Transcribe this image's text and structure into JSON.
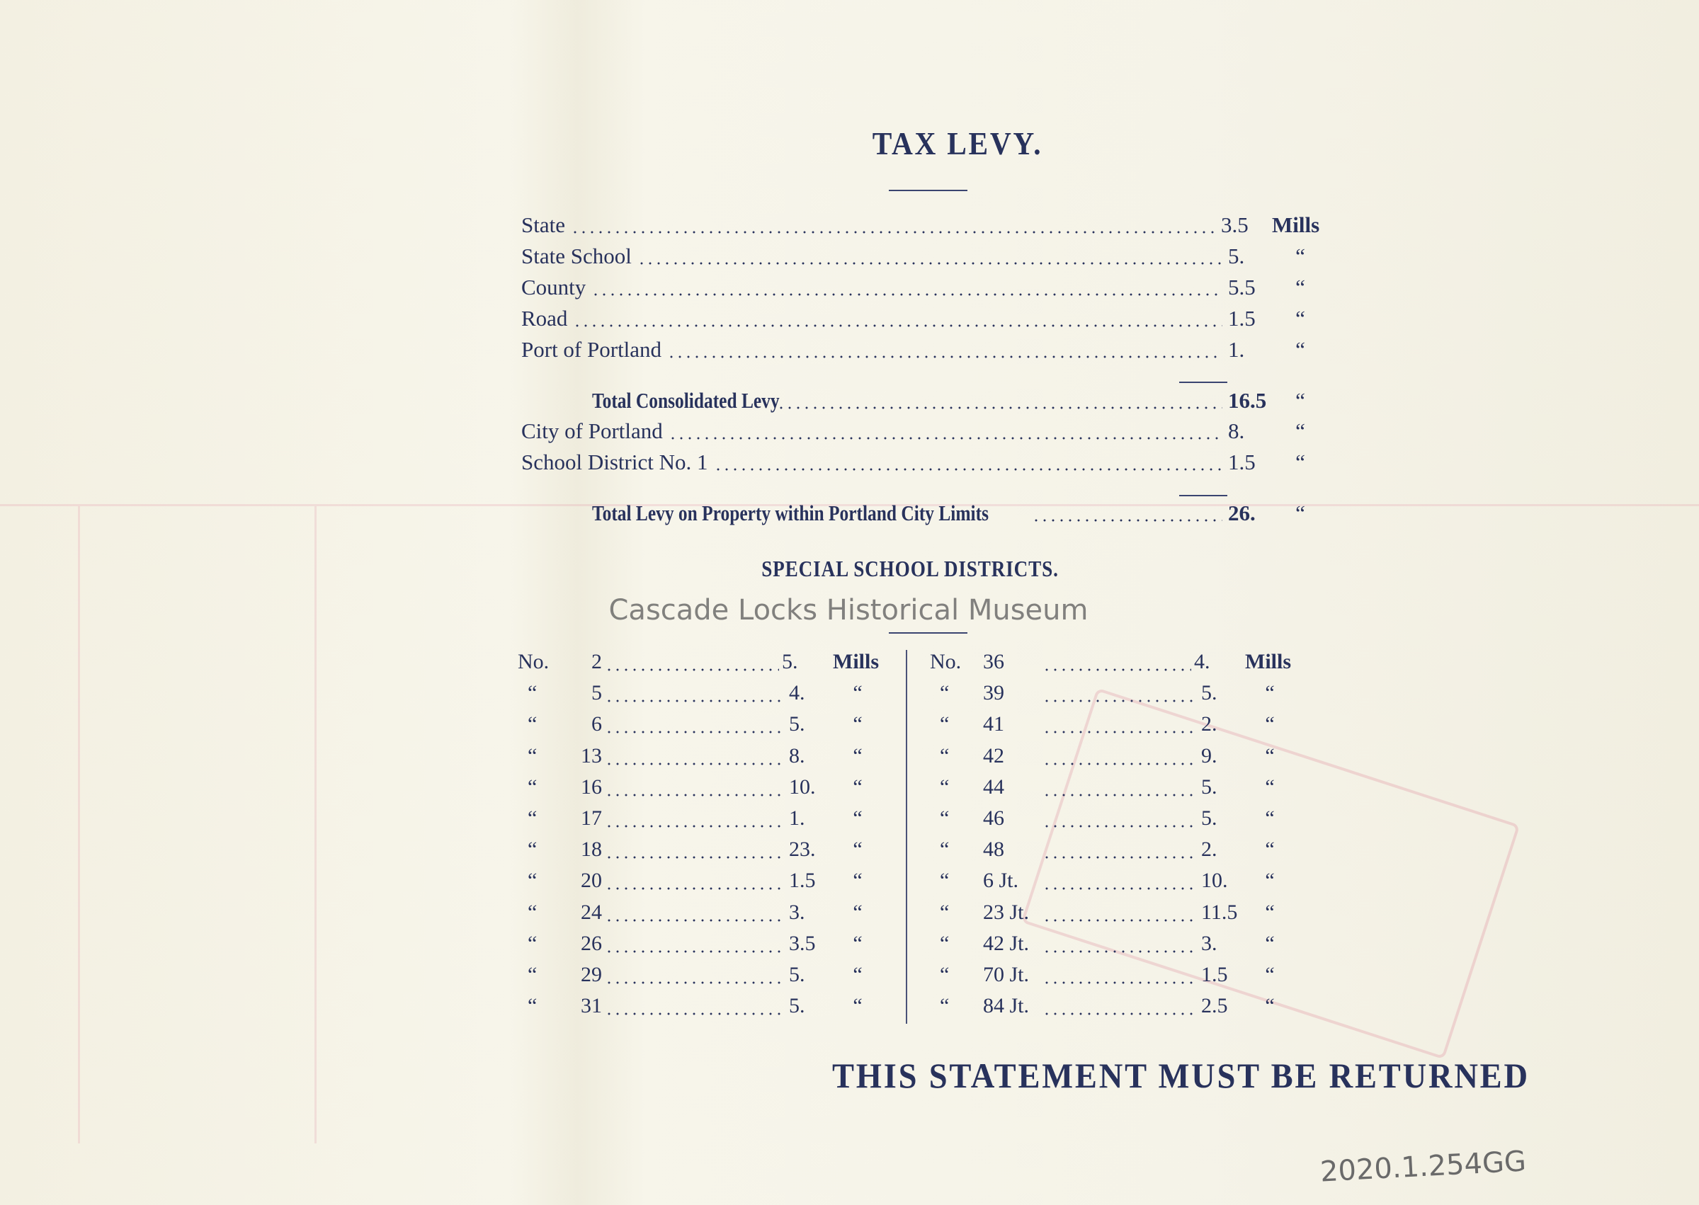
{
  "title": "TAX LEVY.",
  "levy": {
    "unit_first": "Mills",
    "ditto": "“",
    "rows": [
      {
        "label": "State",
        "value": "3.5",
        "unit": "Mills"
      },
      {
        "label": "State School",
        "value": "5.",
        "unit": "“"
      },
      {
        "label": "County",
        "value": "5.5",
        "unit": "“"
      },
      {
        "label": "Road",
        "value": "1.5",
        "unit": "“"
      },
      {
        "label": "Port of Portland",
        "value": "1.",
        "unit": "“"
      },
      {
        "label": "Total Consolidated Levy",
        "value": "16.5",
        "unit": "“"
      },
      {
        "label": "City of Portland",
        "value": "8.",
        "unit": "“"
      },
      {
        "label": "School District No. 1",
        "value": "1.5",
        "unit": "“"
      },
      {
        "label": "Total Levy on Property within Portland City Limits",
        "value": "26.",
        "unit": "“"
      }
    ]
  },
  "special": {
    "heading": "SPECIAL SCHOOL DISTRICTS.",
    "left": [
      {
        "prefix": "No.",
        "district": "2",
        "value": "5.",
        "unit": "Mills"
      },
      {
        "prefix": "“",
        "district": "5",
        "value": "4.",
        "unit": "“"
      },
      {
        "prefix": "“",
        "district": "6",
        "value": "5.",
        "unit": "“"
      },
      {
        "prefix": "“",
        "district": "13",
        "value": "8.",
        "unit": "“"
      },
      {
        "prefix": "“",
        "district": "16",
        "value": "10.",
        "unit": "“"
      },
      {
        "prefix": "“",
        "district": "17",
        "value": "1.",
        "unit": "“"
      },
      {
        "prefix": "“",
        "district": "18",
        "value": "23.",
        "unit": "“"
      },
      {
        "prefix": "“",
        "district": "20",
        "value": "1.5",
        "unit": "“"
      },
      {
        "prefix": "“",
        "district": "24",
        "value": "3.",
        "unit": "“"
      },
      {
        "prefix": "“",
        "district": "26",
        "value": "3.5",
        "unit": "“"
      },
      {
        "prefix": "“",
        "district": "29",
        "value": "5.",
        "unit": "“"
      },
      {
        "prefix": "“",
        "district": "31",
        "value": "5.",
        "unit": "“"
      }
    ],
    "right": [
      {
        "prefix": "No.",
        "district": "36",
        "value": "4.",
        "unit": "Mills"
      },
      {
        "prefix": "“",
        "district": "39",
        "value": "5.",
        "unit": "“"
      },
      {
        "prefix": "“",
        "district": "41",
        "value": "2.",
        "unit": "“"
      },
      {
        "prefix": "“",
        "district": "42",
        "value": "9.",
        "unit": "“"
      },
      {
        "prefix": "“",
        "district": "44",
        "value": "5.",
        "unit": "“"
      },
      {
        "prefix": "“",
        "district": "46",
        "value": "5.",
        "unit": "“"
      },
      {
        "prefix": "“",
        "district": "48",
        "value": "2.",
        "unit": "“"
      },
      {
        "prefix": "“",
        "district": "6 Jt.",
        "value": "10.",
        "unit": "“"
      },
      {
        "prefix": "“",
        "district": "23 Jt.",
        "value": "11.5",
        "unit": "“"
      },
      {
        "prefix": "“",
        "district": "42 Jt.",
        "value": "3.",
        "unit": "“"
      },
      {
        "prefix": "“",
        "district": "70 Jt.",
        "value": "1.5",
        "unit": "“"
      },
      {
        "prefix": "“",
        "district": "84 Jt.",
        "value": "2.5",
        "unit": "“"
      }
    ]
  },
  "watermark": "Cascade Locks Historical Museum",
  "footer": "THIS STATEMENT MUST BE RETURNED",
  "catalog_number": "2020.1.254GG",
  "colors": {
    "ink": "#28325c",
    "paper": "#f5f3e8",
    "stamp": "#d25070"
  }
}
